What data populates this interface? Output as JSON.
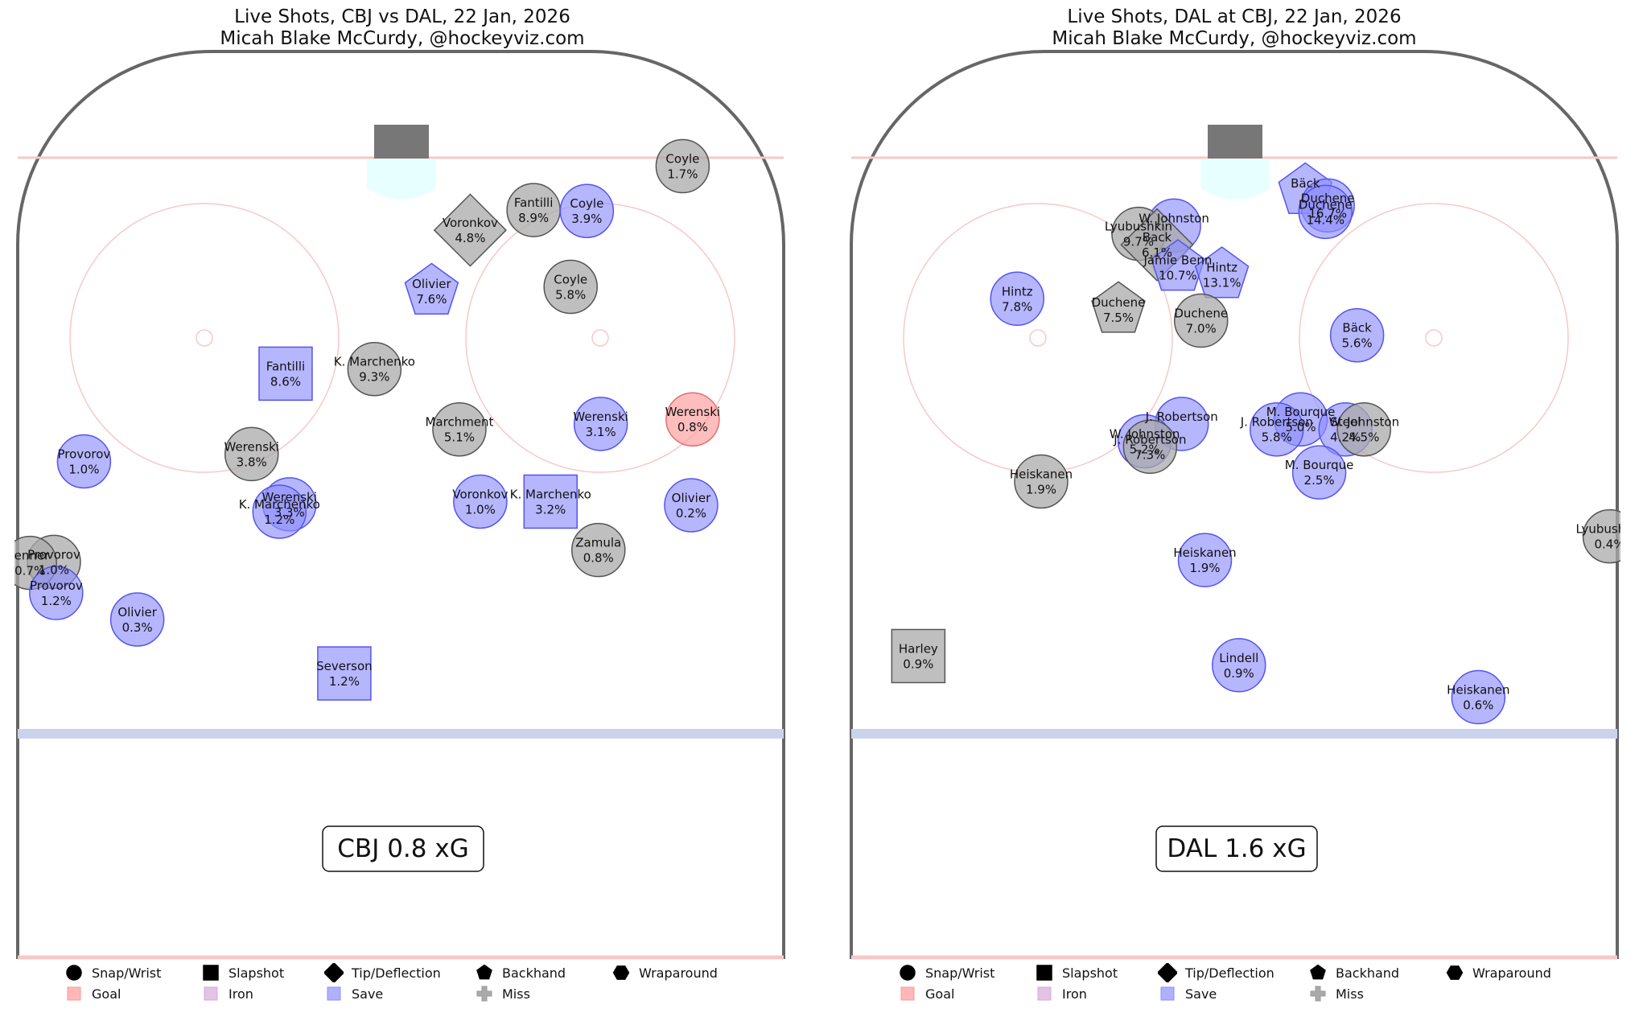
{
  "panels": [
    {
      "title": "Live Shots, CBJ vs DAL, 22 Jan, 2026",
      "subtitle": "Micah Blake McCurdy, @hockeyviz.com",
      "xg_label": "CBJ 0.8 xG"
    },
    {
      "title": "Live Shots, DAL at CBJ, 22 Jan, 2026",
      "subtitle": "Micah Blake McCurdy, @hockeyviz.com",
      "xg_label": "DAL 1.6 xG"
    }
  ],
  "legend": {
    "shapes": [
      {
        "label": "Snap/Wrist",
        "icon": "circle"
      },
      {
        "label": "Slapshot",
        "icon": "square"
      },
      {
        "label": "Tip/Deflection",
        "icon": "diamond"
      },
      {
        "label": "Backhand",
        "icon": "pentagon"
      },
      {
        "label": "Wraparound",
        "icon": "hexagon"
      }
    ],
    "outcomes": [
      {
        "label": "Goal",
        "color": "#ff9999"
      },
      {
        "label": "Iron",
        "color": "#d8a8d8"
      },
      {
        "label": "Save",
        "color": "#8f8fff"
      },
      {
        "label": "Miss",
        "color": "#aaaaaa"
      }
    ]
  },
  "chart_data": [
    {
      "type": "scatter",
      "title": "Live Shots, CBJ vs DAL, 22 Jan, 2026",
      "subtitle": "Micah Blake McCurdy, @hockeyviz.com",
      "annotation": "CBJ 0.8 xG",
      "x_range": [
        0,
        100
      ],
      "y_range": [
        0,
        100
      ],
      "shots": [
        {
          "player": "Coyle",
          "xg": "1.7%",
          "x": 86.5,
          "y": 12.9,
          "shape": "circle",
          "outcome": "miss"
        },
        {
          "player": "Fantilli",
          "xg": "8.9%",
          "x": 67.2,
          "y": 17.7,
          "shape": "circle",
          "outcome": "miss"
        },
        {
          "player": "Coyle",
          "xg": "3.9%",
          "x": 74.1,
          "y": 17.8,
          "shape": "circle",
          "outcome": "save"
        },
        {
          "player": "Voronkov",
          "xg": "4.8%",
          "x": 59.0,
          "y": 19.9,
          "shape": "diamond",
          "outcome": "miss"
        },
        {
          "player": "Coyle",
          "xg": "5.8%",
          "x": 72.0,
          "y": 26.1,
          "shape": "circle",
          "outcome": "miss"
        },
        {
          "player": "Olivier",
          "xg": "7.6%",
          "x": 54.0,
          "y": 26.6,
          "shape": "pentagon",
          "outcome": "save"
        },
        {
          "player": "K. Marchenko",
          "xg": "9.3%",
          "x": 46.6,
          "y": 35.1,
          "shape": "circle",
          "outcome": "miss"
        },
        {
          "player": "Fantilli",
          "xg": "8.6%",
          "x": 35.1,
          "y": 35.6,
          "shape": "square",
          "outcome": "save"
        },
        {
          "player": "Werenski",
          "xg": "0.8%",
          "x": 87.8,
          "y": 40.6,
          "shape": "circle",
          "outcome": "goal"
        },
        {
          "player": "Werenski",
          "xg": "3.1%",
          "x": 75.9,
          "y": 41.1,
          "shape": "circle",
          "outcome": "save"
        },
        {
          "player": "Marchment",
          "xg": "5.1%",
          "x": 57.6,
          "y": 41.7,
          "shape": "circle",
          "outcome": "miss"
        },
        {
          "player": "Werenski",
          "xg": "3.8%",
          "x": 30.7,
          "y": 44.4,
          "shape": "circle",
          "outcome": "miss"
        },
        {
          "player": "Provorov",
          "xg": "1.0%",
          "x": 9.0,
          "y": 45.2,
          "shape": "circle",
          "outcome": "save"
        },
        {
          "player": "Olivier",
          "xg": "0.2%",
          "x": 87.6,
          "y": 50.0,
          "shape": "circle",
          "outcome": "save"
        },
        {
          "player": "Voronkov",
          "xg": "1.0%",
          "x": 60.3,
          "y": 49.6,
          "shape": "circle",
          "outcome": "save"
        },
        {
          "player": "K. Marchenko",
          "xg": "3.2%",
          "x": 69.4,
          "y": 49.6,
          "shape": "square",
          "outcome": "save"
        },
        {
          "player": "Werenski",
          "xg": "3.3%",
          "x": 35.6,
          "y": 49.9,
          "shape": "circle",
          "outcome": "save"
        },
        {
          "player": "K. Marchenko",
          "xg": "1.2%",
          "x": 34.3,
          "y": 50.7,
          "shape": "circle",
          "outcome": "save"
        },
        {
          "player": "Zamula",
          "xg": "0.8%",
          "x": 75.6,
          "y": 54.9,
          "shape": "circle",
          "outcome": "miss"
        },
        {
          "player": "Provorov",
          "xg": "1.0%",
          "x": 5.1,
          "y": 56.2,
          "shape": "circle",
          "outcome": "miss"
        },
        {
          "player": "Jenner",
          "xg": "0.7%",
          "x": 2.0,
          "y": 56.3,
          "shape": "circle",
          "outcome": "miss"
        },
        {
          "player": "Provorov",
          "xg": "1.2%",
          "x": 5.4,
          "y": 59.6,
          "shape": "circle",
          "outcome": "save"
        },
        {
          "player": "Olivier",
          "xg": "0.3%",
          "x": 15.9,
          "y": 62.5,
          "shape": "circle",
          "outcome": "save"
        },
        {
          "player": "Severson",
          "xg": "1.2%",
          "x": 42.7,
          "y": 68.4,
          "shape": "square",
          "outcome": "save"
        }
      ]
    },
    {
      "type": "scatter",
      "title": "Live Shots, DAL at CBJ, 22 Jan, 2026",
      "subtitle": "Micah Blake McCurdy, @hockeyviz.com",
      "annotation": "DAL 1.6 xG",
      "x_range": [
        0,
        100
      ],
      "y_range": [
        0,
        100
      ],
      "shots": [
        {
          "player": "Bäck",
          "xg": "",
          "x": 59.2,
          "y": 15.6,
          "shape": "pentagon",
          "outcome": "save"
        },
        {
          "player": "Duchene",
          "xg": "16.7%",
          "x": 62.1,
          "y": 17.2,
          "shape": "circle",
          "outcome": "save"
        },
        {
          "player": "Duchene",
          "xg": "14.4%",
          "x": 61.8,
          "y": 17.9,
          "shape": "circle",
          "outcome": "save"
        },
        {
          "player": "W. Johnston",
          "xg": "",
          "x": 42.2,
          "y": 19.4,
          "shape": "circle",
          "outcome": "save"
        },
        {
          "player": "Lyubushkin",
          "xg": "9.7%",
          "x": 37.6,
          "y": 20.3,
          "shape": "circle",
          "outcome": "miss"
        },
        {
          "player": "Back",
          "xg": "6.1%",
          "x": 40.0,
          "y": 21.5,
          "shape": "diamond",
          "outcome": "miss"
        },
        {
          "player": "Jamie Benn",
          "xg": "10.7%",
          "x": 42.7,
          "y": 24.0,
          "shape": "pentagon",
          "outcome": "save"
        },
        {
          "player": "Hintz",
          "xg": "13.1%",
          "x": 48.4,
          "y": 24.8,
          "shape": "pentagon",
          "outcome": "save"
        },
        {
          "player": "Hintz",
          "xg": "7.8%",
          "x": 21.9,
          "y": 27.4,
          "shape": "circle",
          "outcome": "save"
        },
        {
          "player": "Duchene",
          "xg": "7.5%",
          "x": 35.0,
          "y": 28.6,
          "shape": "pentagon",
          "outcome": "miss"
        },
        {
          "player": "Duchene",
          "xg": "7.0%",
          "x": 45.7,
          "y": 29.8,
          "shape": "circle",
          "outcome": "miss"
        },
        {
          "player": "Bäck",
          "xg": "5.6%",
          "x": 65.9,
          "y": 31.4,
          "shape": "circle",
          "outcome": "save"
        },
        {
          "player": "J. Robertson",
          "xg": "",
          "x": 43.2,
          "y": 41.1,
          "shape": "circle",
          "outcome": "save"
        },
        {
          "player": "M. Bourque",
          "xg": "5.0%",
          "x": 58.6,
          "y": 40.6,
          "shape": "circle",
          "outcome": "save"
        },
        {
          "player": "J. Robertson",
          "xg": "5.8%",
          "x": 55.5,
          "y": 41.7,
          "shape": "circle",
          "outcome": "save"
        },
        {
          "player": "Steel",
          "xg": "4.2%",
          "x": 64.4,
          "y": 41.7,
          "shape": "circle",
          "outcome": "save"
        },
        {
          "player": "W. Johnston",
          "xg": "4.5%",
          "x": 66.8,
          "y": 41.7,
          "shape": "circle",
          "outcome": "miss"
        },
        {
          "player": "W. Johnston",
          "xg": "5.2%",
          "x": 38.4,
          "y": 43.0,
          "shape": "circle",
          "outcome": "save"
        },
        {
          "player": "J. Robertson",
          "xg": "7.3%",
          "x": 39.1,
          "y": 43.6,
          "shape": "circle",
          "outcome": "miss"
        },
        {
          "player": "M. Bourque",
          "xg": "2.5%",
          "x": 61.0,
          "y": 46.4,
          "shape": "circle",
          "outcome": "save"
        },
        {
          "player": "Heiskanen",
          "xg": "1.9%",
          "x": 25.0,
          "y": 47.4,
          "shape": "circle",
          "outcome": "miss"
        },
        {
          "player": "Lyubushkin",
          "xg": "0.4%",
          "x": 98.6,
          "y": 53.4,
          "shape": "circle",
          "outcome": "miss"
        },
        {
          "player": "Heiskanen",
          "xg": "1.9%",
          "x": 46.2,
          "y": 56.0,
          "shape": "circle",
          "outcome": "save"
        },
        {
          "player": "Harley",
          "xg": "0.9%",
          "x": 9.1,
          "y": 66.5,
          "shape": "square",
          "outcome": "miss"
        },
        {
          "player": "Lindell",
          "xg": "0.9%",
          "x": 50.6,
          "y": 67.5,
          "shape": "circle",
          "outcome": "save"
        },
        {
          "player": "Heiskanen",
          "xg": "0.6%",
          "x": 81.6,
          "y": 71.0,
          "shape": "circle",
          "outcome": "save"
        }
      ]
    }
  ]
}
